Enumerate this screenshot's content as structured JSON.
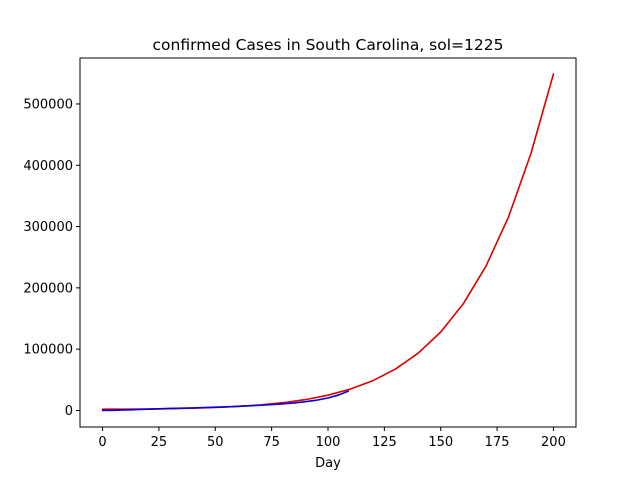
{
  "chart_data": {
    "type": "line",
    "title": "confirmed Cases in South Carolina, sol=1225",
    "xlabel": "Day",
    "ylabel": "",
    "xlim": [
      -10,
      210
    ],
    "ylim": [
      -27000,
      575000
    ],
    "x_ticks": [
      0,
      25,
      50,
      75,
      100,
      125,
      150,
      175,
      200
    ],
    "y_ticks": [
      0,
      100000,
      200000,
      300000,
      400000,
      500000
    ],
    "grid": false,
    "legend": "none",
    "series": [
      {
        "color": "#dd0000",
        "style": "model",
        "x": [
          0,
          10,
          20,
          30,
          40,
          50,
          60,
          70,
          80,
          90,
          100,
          110,
          120,
          130,
          140,
          150,
          160,
          170,
          180,
          190,
          200
        ],
        "y": [
          2100,
          2100,
          2300,
          2800,
          3600,
          4800,
          6500,
          9000,
          12600,
          17700,
          24900,
          34900,
          48700,
          67700,
          93400,
          128000,
          174000,
          235000,
          315000,
          419000,
          549000
        ]
      },
      {
        "color": "#0000dd",
        "style": "observed",
        "x": [
          0,
          5,
          10,
          15,
          20,
          25,
          30,
          35,
          40,
          45,
          50,
          55,
          60,
          65,
          70,
          75,
          80,
          85,
          90,
          95,
          100,
          105,
          109
        ],
        "y": [
          0,
          300,
          800,
          1500,
          2100,
          2700,
          3300,
          3700,
          4200,
          4700,
          5300,
          6000,
          6800,
          7600,
          8500,
          9500,
          10800,
          12300,
          14300,
          16800,
          20300,
          25500,
          31500
        ]
      }
    ]
  }
}
